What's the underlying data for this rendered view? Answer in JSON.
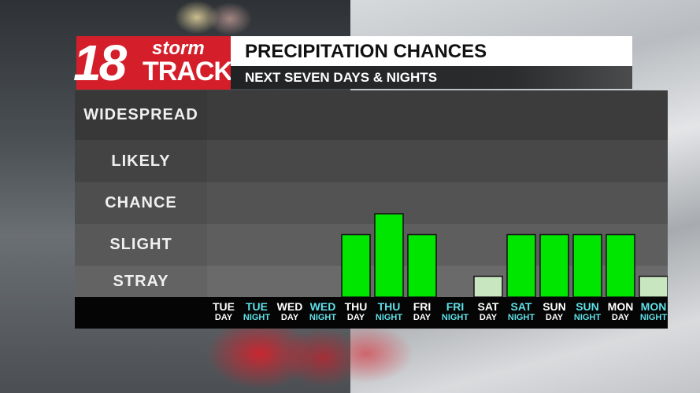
{
  "logo": {
    "number": "18",
    "word1": "storm",
    "word2": "TRACK"
  },
  "header": {
    "title": "PRECIPITATION CHANCES",
    "subtitle": "NEXT SEVEN DAYS & NIGHTS"
  },
  "colors": {
    "logo_red": "#d41f2b",
    "bar_green": "#00e600",
    "bar_light": "#c8e6c0",
    "night_label": "#5fe0e8",
    "day_label": "#ffffff",
    "band_dark": "#3c3c3c",
    "band_light": "#6a6a6a"
  },
  "chart_data": {
    "type": "bar",
    "title": "PRECIPITATION CHANCES",
    "subtitle": "NEXT SEVEN DAYS & NIGHTS",
    "y_levels": [
      "WIDESPREAD",
      "LIKELY",
      "CHANCE",
      "SLIGHT",
      "STRAY"
    ],
    "y_scale_note": "",
    "ylim": [
      0,
      5
    ],
    "categories": [
      {
        "day": "TUE",
        "period": "DAY"
      },
      {
        "day": "TUE",
        "period": "NIGHT"
      },
      {
        "day": "WED",
        "period": "DAY"
      },
      {
        "day": "WED",
        "period": "NIGHT"
      },
      {
        "day": "THU",
        "period": "DAY"
      },
      {
        "day": "THU",
        "period": "NIGHT"
      },
      {
        "day": "FRI",
        "period": "DAY"
      },
      {
        "day": "FRI",
        "period": "NIGHT"
      },
      {
        "day": "SAT",
        "period": "DAY"
      },
      {
        "day": "SAT",
        "period": "NIGHT"
      },
      {
        "day": "SUN",
        "period": "DAY"
      },
      {
        "day": "SUN",
        "period": "NIGHT"
      },
      {
        "day": "MON",
        "period": "DAY"
      },
      {
        "day": "MON",
        "period": "NIGHT"
      }
    ],
    "values": [
      0,
      0,
      0,
      0,
      1.5,
      2.0,
      1.5,
      0,
      0.5,
      1.5,
      1.5,
      1.5,
      1.5,
      0.5
    ],
    "bar_styles": [
      "none",
      "none",
      "none",
      "none",
      "green",
      "green",
      "green",
      "none",
      "light",
      "green",
      "green",
      "green",
      "green",
      "light"
    ],
    "grid": false,
    "legend": "none"
  }
}
